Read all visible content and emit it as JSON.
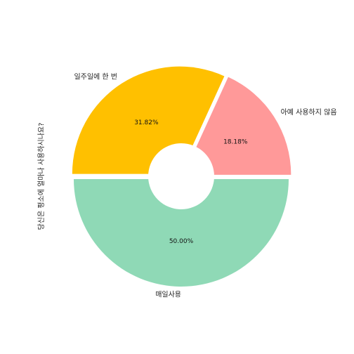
{
  "chart_data": {
    "type": "pie",
    "title": "",
    "ylabel": "당신은 평소에 얼마나 사용하시나요?",
    "categories": [
      "아예 사용하지 않음",
      "일주일에 한 번",
      "매일사용"
    ],
    "values": [
      18.18,
      31.82,
      50.0
    ],
    "value_labels": [
      "18.18%",
      "31.82%",
      "50.00%"
    ],
    "colors": [
      "#FF9999",
      "#FFC000",
      "#8FD9B6"
    ],
    "donut": true,
    "start_angle_deg": 0,
    "direction": "counterclockwise",
    "legend": "none"
  }
}
